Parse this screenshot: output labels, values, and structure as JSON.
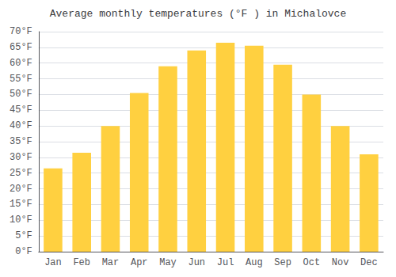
{
  "chart_data": {
    "type": "bar",
    "title": "Average monthly temperatures (°F ) in Michalovce",
    "categories": [
      "Jan",
      "Feb",
      "Mar",
      "Apr",
      "May",
      "Jun",
      "Jul",
      "Aug",
      "Sep",
      "Oct",
      "Nov",
      "Dec"
    ],
    "values": [
      26.5,
      31.5,
      40.0,
      50.5,
      59.0,
      64.0,
      66.5,
      65.5,
      59.5,
      50.0,
      40.0,
      31.0
    ],
    "color": "#FFD040",
    "ylim": [
      0,
      70
    ],
    "yticks": [
      {
        "value": 0,
        "label": "0°F"
      },
      {
        "value": 5,
        "label": "5°F"
      },
      {
        "value": 10,
        "label": "10°F"
      },
      {
        "value": 15,
        "label": "15°F"
      },
      {
        "value": 20,
        "label": "20°F"
      },
      {
        "value": 25,
        "label": "25°F"
      },
      {
        "value": 30,
        "label": "30°F"
      },
      {
        "value": 35,
        "label": "35°F"
      },
      {
        "value": 40,
        "label": "40°F"
      },
      {
        "value": 45,
        "label": "45°F"
      },
      {
        "value": 50,
        "label": "50°F"
      },
      {
        "value": 55,
        "label": "55°F"
      },
      {
        "value": 60,
        "label": "60°F"
      },
      {
        "value": 65,
        "label": "65°F"
      },
      {
        "value": 70,
        "label": "70°F"
      }
    ],
    "grid": true
  }
}
